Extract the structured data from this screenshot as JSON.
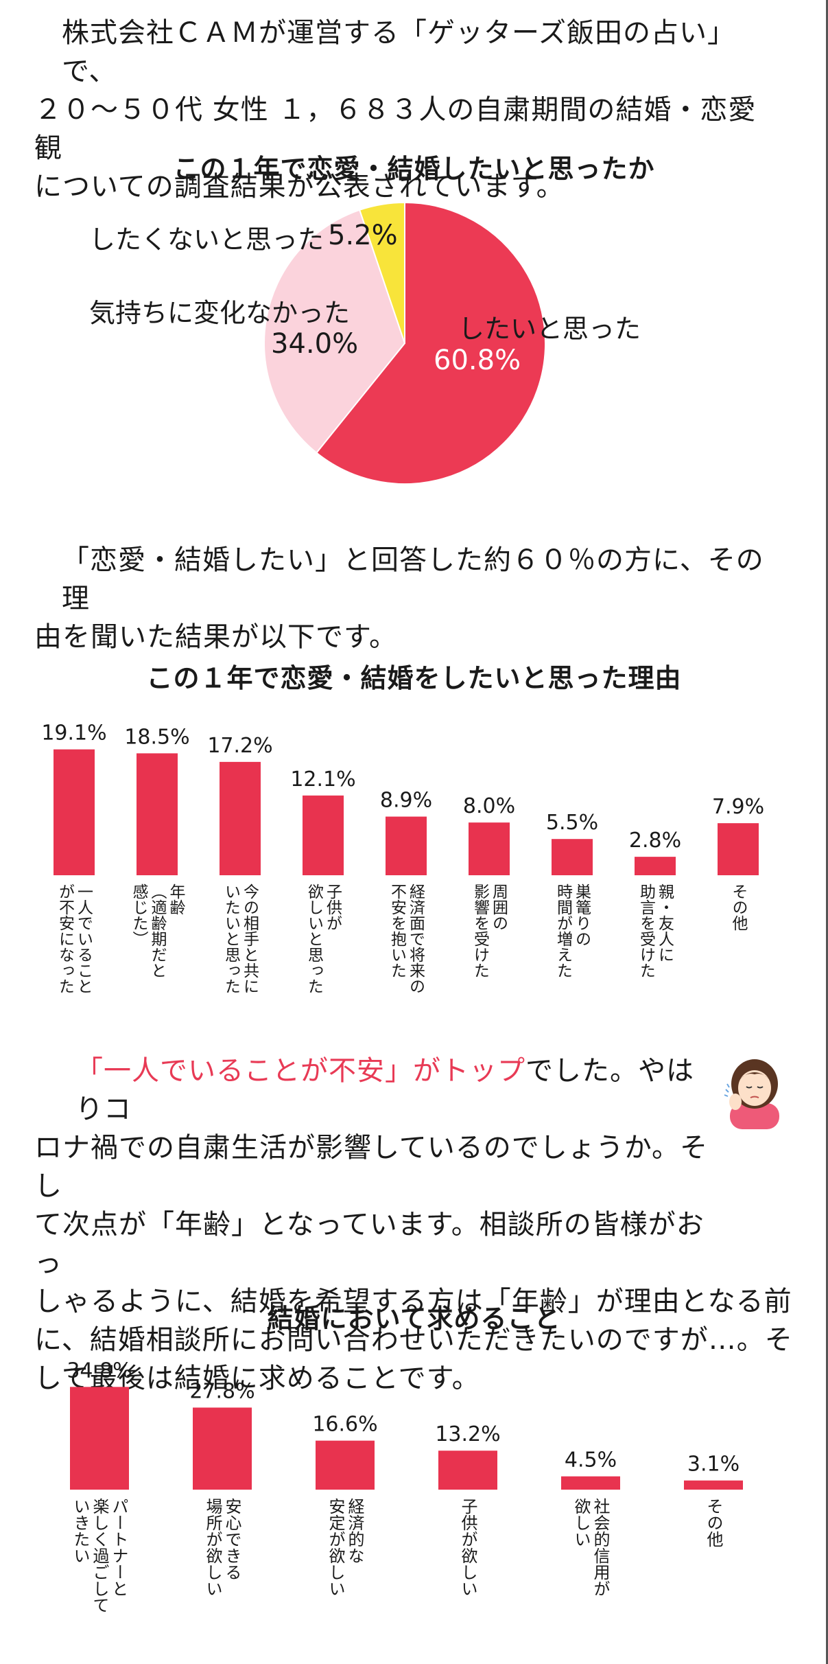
{
  "intro": {
    "line1": "株式会社ＣＡＭが運営する「ゲッターズ飯田の占い」で、",
    "line2": "２０～５０代 女性 １，６８３人の自粛期間の結婚・恋愛観",
    "line3": "についての調査結果が公表されています。"
  },
  "pie_title": "この１年で恋愛・結婚したいと思ったか",
  "middle": {
    "line1": "「恋愛・結婚したい」と回答した約６０％の方に、その理",
    "line2": "由を聞いた結果が以下です。"
  },
  "reasons_title": "この１年で恋愛・結婚をしたいと思った理由",
  "comment": {
    "highlight": "「一人でいることが不安」がトップ",
    "line1_rest": "でした。やはりコ",
    "line2": "ロナ禍での自粛生活が影響しているのでしょうか。そし",
    "line3": "て次点が「年齢」となっています。相談所の皆様がおっ",
    "line4": "しゃるように、結婚を希望する方は「年齢」が理由となる前",
    "line5": "に、結婚相談所にお問い合わせいただきたいのですが…。そ",
    "line6": "して最後は結婚に求めることです。"
  },
  "wants_title": "結婚において求めること",
  "colors": {
    "bar": "#e8334f",
    "pie_main": "#ec3a54",
    "pie_mid": "#fbd3dc",
    "pie_small": "#f8e43a"
  },
  "chart_data": [
    {
      "type": "pie",
      "title": "この１年で恋愛・結婚したいと思ったか",
      "slices": [
        {
          "label": "したいと思った",
          "value": 60.8,
          "value_label": "60.8%",
          "color": "#ec3a54"
        },
        {
          "label": "気持ちに変化なかった",
          "value": 34.0,
          "value_label": "34.0%",
          "color": "#fbd3dc"
        },
        {
          "label": "したくないと思った",
          "value": 5.2,
          "value_label": "5.2%",
          "color": "#f8e43a"
        }
      ]
    },
    {
      "type": "bar",
      "title": "この１年で恋愛・結婚をしたいと思った理由",
      "categories": [
        [
          "一人でいること",
          "が不安になった"
        ],
        [
          "年齢",
          "（適齢期だと",
          "感じた）"
        ],
        [
          "今の相手と共に",
          "いたいと思った"
        ],
        [
          "子供が",
          "欲しいと思った"
        ],
        [
          "経済面で将来の",
          "不安を抱いた"
        ],
        [
          "周囲の",
          "影響を受けた"
        ],
        [
          "巣篭りの",
          "時間が増えた"
        ],
        [
          "親・友人に",
          "助言を受けた"
        ],
        [
          "その他"
        ]
      ],
      "values": [
        19.1,
        18.5,
        17.2,
        12.1,
        8.9,
        8.0,
        5.5,
        2.8,
        7.9
      ],
      "value_labels": [
        "19.1%",
        "18.5%",
        "17.2%",
        "12.1%",
        "8.9%",
        "8.0%",
        "5.5%",
        "2.8%",
        "7.9%"
      ]
    },
    {
      "type": "bar",
      "title": "結婚において求めること",
      "categories": [
        [
          "パートナーと",
          "楽しく過ごして",
          "いきたい"
        ],
        [
          "安心できる",
          "場所が欲しい"
        ],
        [
          "経済的な",
          "安定が欲しい"
        ],
        [
          "子供が欲しい"
        ],
        [
          "社会的信用が",
          "欲しい"
        ],
        [
          "その他"
        ]
      ],
      "values": [
        34.8,
        27.8,
        16.6,
        13.2,
        4.5,
        3.1
      ],
      "value_labels": [
        "34.8%",
        "27.8%",
        "16.6%",
        "13.2%",
        "4.5%",
        "3.1%"
      ]
    }
  ]
}
